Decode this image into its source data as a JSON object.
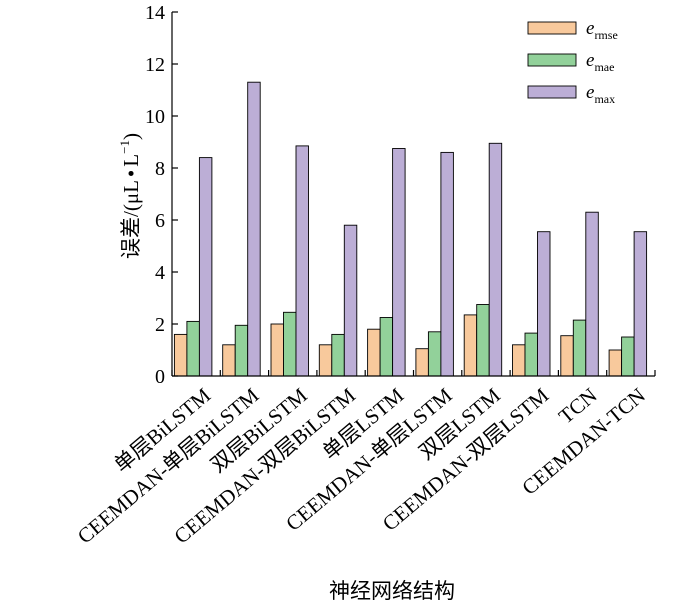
{
  "chart_data": {
    "type": "bar",
    "title": "",
    "xlabel": "神经网络结构",
    "ylabel": "误差/(μL·L⁻¹)",
    "ylabel_parts": {
      "main": "误差/(μL",
      "dot": "•",
      "unit": "L",
      "exp": "−1",
      "close": ")"
    },
    "ylim": [
      0,
      14
    ],
    "yticks": [
      0,
      2,
      4,
      6,
      8,
      10,
      12,
      14
    ],
    "categories": [
      "单层BiLSTM",
      "CEEMDAN-单层BiLSTM",
      "双层BiLSTM",
      "CEEMDAN-双层BiLSTM",
      "单层LSTM",
      "CEEMDAN-单层LSTM",
      "双层LSTM",
      "CEEMDAN-双层LSTM",
      "TCN",
      "CEEMDAN-TCN"
    ],
    "series": [
      {
        "name": "e_rmse",
        "legend_main": "e",
        "legend_sub": "rmse",
        "color": "#f8c99c",
        "values": [
          1.6,
          1.2,
          2.0,
          1.2,
          1.8,
          1.05,
          2.35,
          1.2,
          1.55,
          1.0
        ]
      },
      {
        "name": "e_mae",
        "legend_main": "e",
        "legend_sub": "mae",
        "color": "#92d19a",
        "values": [
          2.1,
          1.95,
          2.45,
          1.6,
          2.25,
          1.7,
          2.75,
          1.65,
          2.15,
          1.5
        ]
      },
      {
        "name": "e_max",
        "legend_main": "e",
        "legend_sub": "max",
        "color": "#bcaed6",
        "values": [
          8.4,
          11.3,
          8.85,
          5.8,
          8.75,
          8.6,
          8.95,
          5.55,
          6.3,
          5.55
        ]
      }
    ],
    "legend_position": "top-right",
    "grid": false
  }
}
